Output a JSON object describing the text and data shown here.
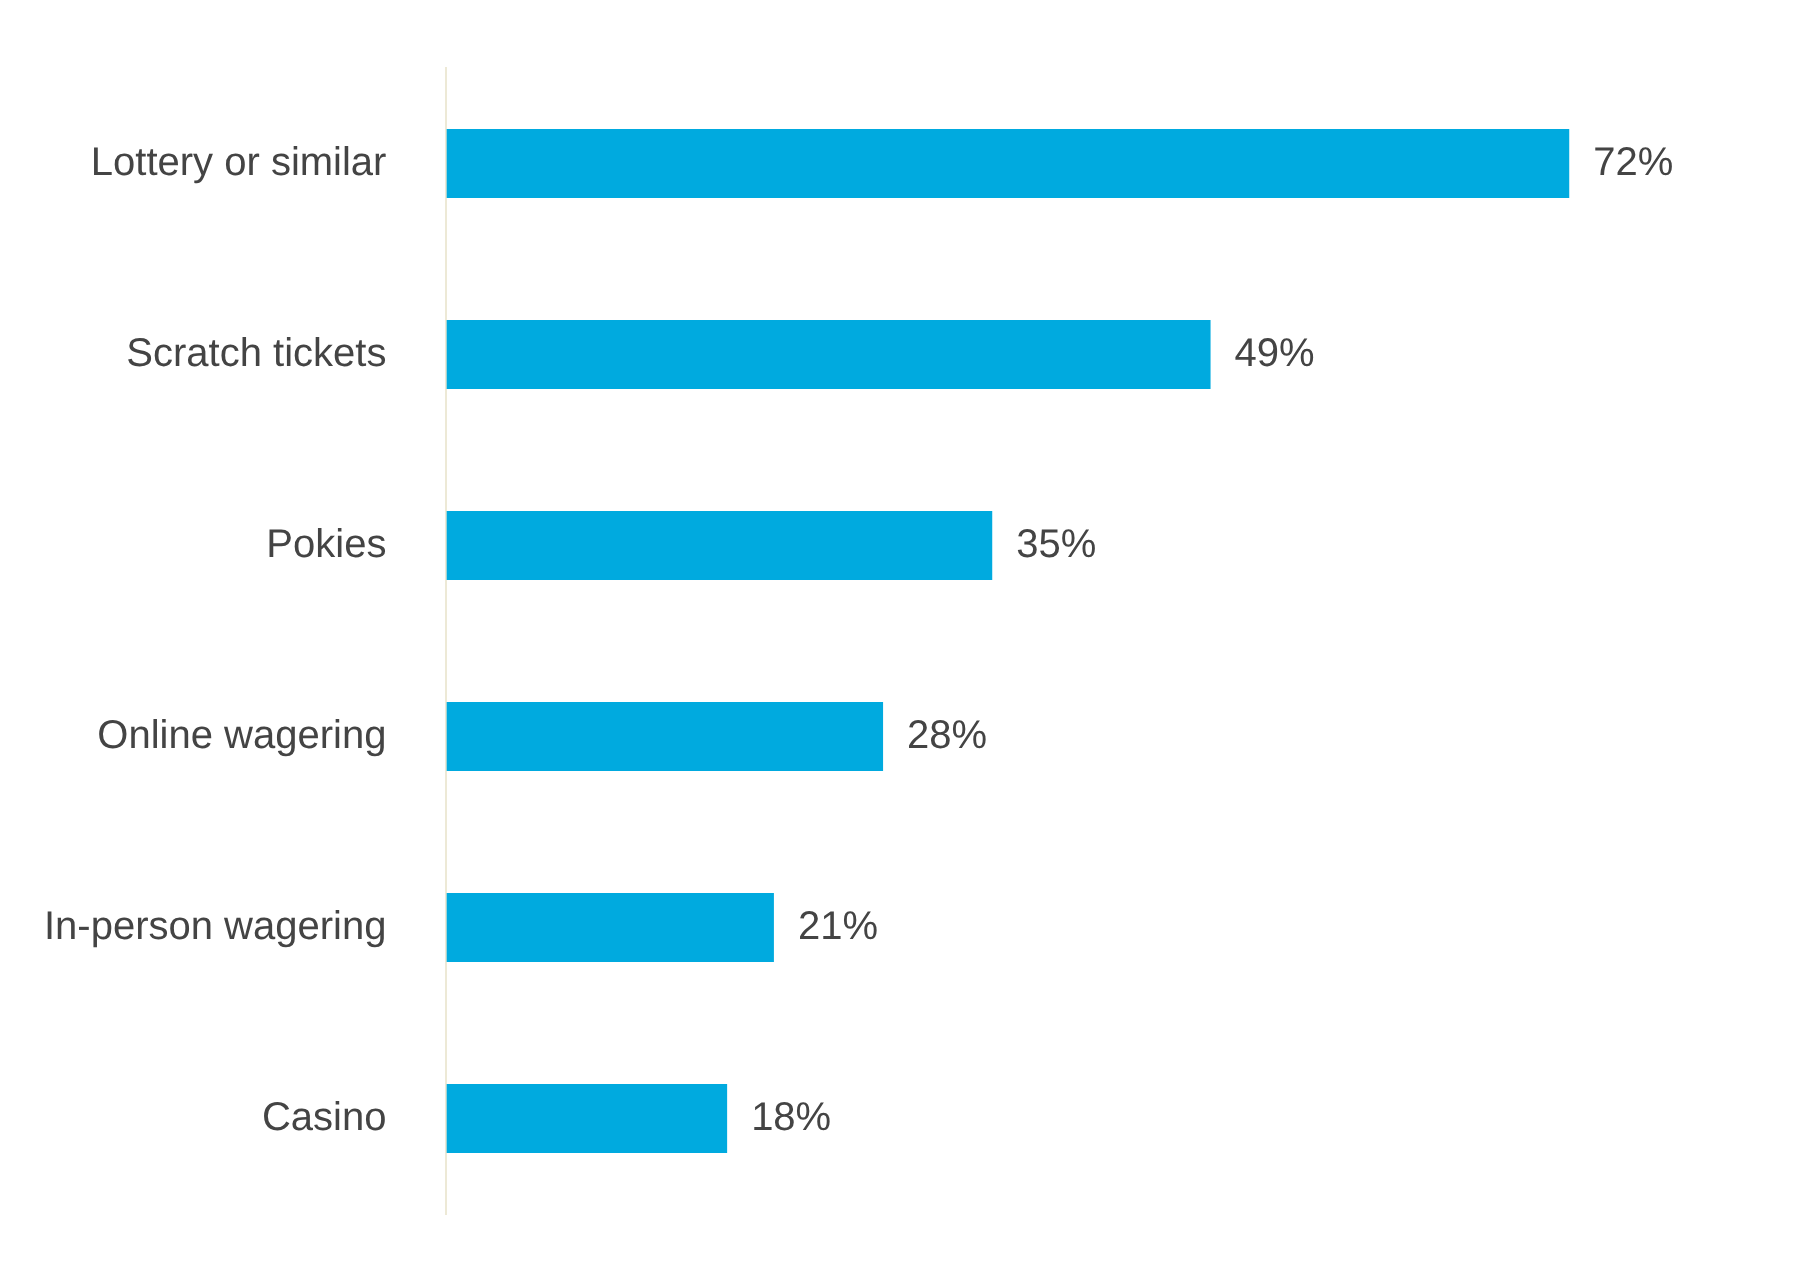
{
  "chart_data": {
    "type": "bar",
    "orientation": "horizontal",
    "categories": [
      "Lottery or similar",
      "Scratch tickets",
      "Pokies",
      "Online wagering",
      "In-person wagering",
      "Casino"
    ],
    "values": [
      72,
      49,
      35,
      28,
      21,
      18
    ],
    "value_labels": [
      "72%",
      "49%",
      "35%",
      "28%",
      "21%",
      "18%"
    ],
    "color": "#00aadf",
    "legend": false
  }
}
